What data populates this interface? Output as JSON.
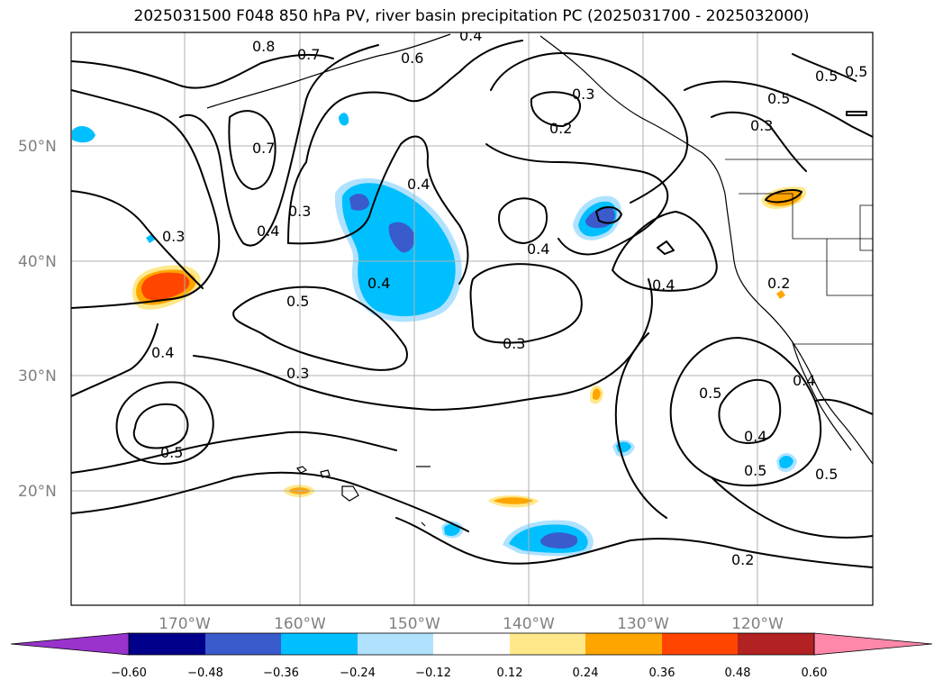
{
  "title": "2025031500 F048 850 hPa PV, river basin precipitation PC (2025031700 - 2025032000)",
  "lat_labels": [
    "50°N",
    "40°N",
    "30°N",
    "20°N"
  ],
  "lon_labels": [
    "170°W",
    "160°W",
    "150°W",
    "140°W",
    "130°W",
    "120°W"
  ],
  "contour_labels": [
    "0.8",
    "0.7",
    "0.6",
    "0.5",
    "0.7",
    "0.3",
    "0.4",
    "0.4",
    "0.3",
    "0.3",
    "0.2",
    "0.4",
    "0.5",
    "0.3",
    "0.5",
    "0.4",
    "0.4",
    "0.5",
    "0.3",
    "0.4",
    "0.3",
    "0.2",
    "0.4",
    "0.5",
    "0.4",
    "0.5",
    "0.5",
    "0.2",
    "0.5",
    "0.4"
  ],
  "colorbar": {
    "ticks": [
      "−0.60",
      "−0.48",
      "−0.36",
      "−0.24",
      "−0.12",
      "0.12",
      "0.24",
      "0.36",
      "0.48",
      "0.60"
    ],
    "colors": [
      "#9933cc",
      "#00008b",
      "#3a5bcc",
      "#00bfff",
      "#b0e2ff",
      "#ffffff",
      "#ffe88a",
      "#ffa500",
      "#ff4500",
      "#b22222",
      "#ff88aa",
      "#ff88aa"
    ]
  },
  "fill_colors": {
    "light_blue": "#b0e2ff",
    "blue": "#00bfff",
    "dark_blue": "#3a5bcc",
    "light_yellow": "#ffe88a",
    "orange": "#ffa500",
    "red_orange": "#ff4500"
  }
}
